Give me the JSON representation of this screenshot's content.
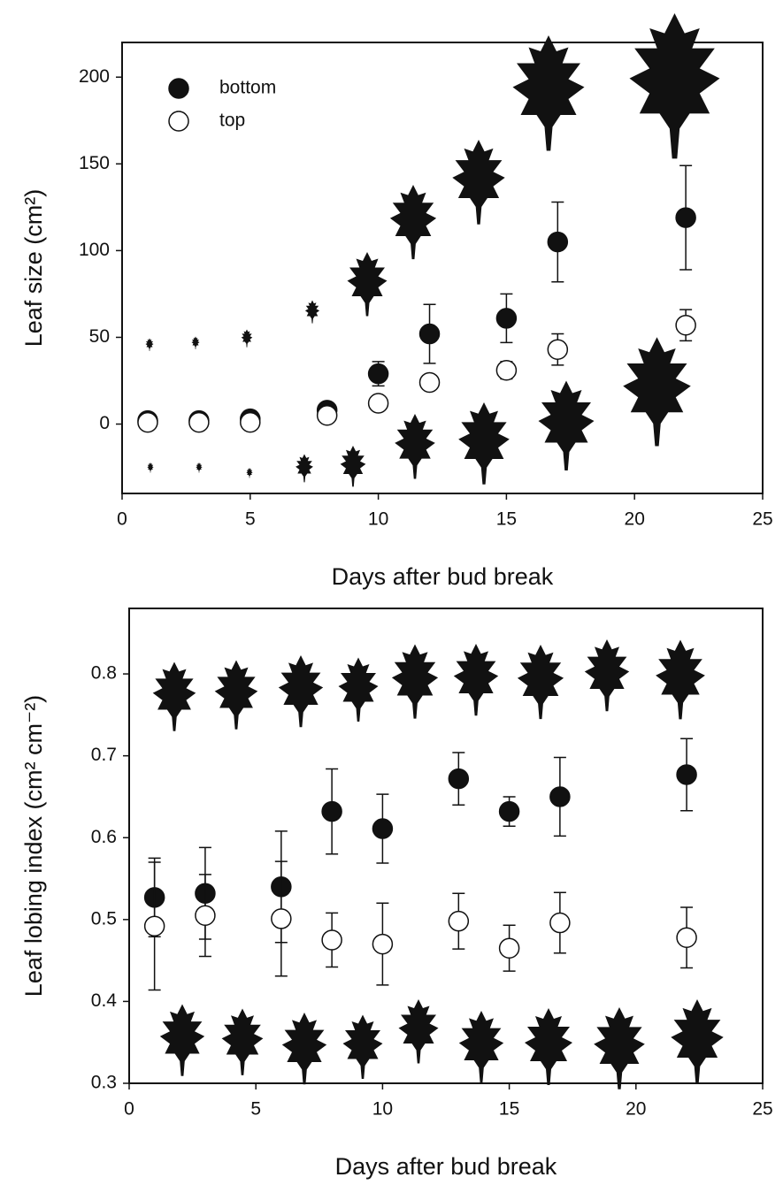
{
  "chart_data": [
    {
      "type": "scatter",
      "xlabel": "Days after bud break",
      "ylabel": "Leaf size (cm²)",
      "xlim": [
        0,
        25
      ],
      "xticks": [
        0,
        5,
        10,
        15,
        20,
        25
      ],
      "ylim": [
        -40,
        220
      ],
      "yticks": [
        0,
        50,
        100,
        150,
        200
      ],
      "legend": "upper left",
      "series": [
        {
          "name": "bottom",
          "color": "#111111",
          "fill": "#111111",
          "x": [
            1,
            3,
            5,
            8,
            10,
            12,
            15,
            17,
            22
          ],
          "values": [
            2,
            2,
            3,
            8,
            29,
            52,
            61,
            105,
            119
          ],
          "errors": [
            null,
            null,
            null,
            null,
            7,
            17,
            14,
            23,
            30
          ]
        },
        {
          "name": "top",
          "color": "#111111",
          "fill": "#ffffff",
          "x": [
            1,
            3,
            5,
            8,
            10,
            12,
            15,
            17,
            22
          ],
          "values": [
            1,
            1,
            1,
            5,
            12,
            24,
            31,
            43,
            57
          ],
          "errors": [
            null,
            null,
            null,
            null,
            null,
            null,
            5,
            9,
            9
          ]
        }
      ]
    },
    {
      "type": "scatter",
      "xlabel": "Days after bud break",
      "ylabel": "Leaf lobing index (cm² cm⁻²)",
      "xlim": [
        0,
        25
      ],
      "xticks": [
        0,
        5,
        10,
        15,
        20,
        25
      ],
      "ylim": [
        0.3,
        0.88
      ],
      "yticks": [
        0.3,
        0.4,
        0.5,
        0.6,
        0.7,
        0.8
      ],
      "series": [
        {
          "color": "#111111",
          "fill": "#111111",
          "x": [
            1,
            3,
            6,
            8,
            10,
            13,
            15,
            17,
            22
          ],
          "values": [
            0.527,
            0.532,
            0.54,
            0.632,
            0.611,
            0.672,
            0.632,
            0.65,
            0.677
          ],
          "errors": [
            0.048,
            0.056,
            0.068,
            0.052,
            0.042,
            0.032,
            0.018,
            0.048,
            0.044
          ]
        },
        {
          "color": "#111111",
          "fill": "#ffffff",
          "x": [
            1,
            3,
            6,
            8,
            10,
            13,
            15,
            17,
            22
          ],
          "values": [
            0.492,
            0.505,
            0.501,
            0.475,
            0.47,
            0.498,
            0.465,
            0.496,
            0.478
          ],
          "errors": [
            0.078,
            0.05,
            0.07,
            0.033,
            0.05,
            0.034,
            0.028,
            0.037,
            0.037
          ]
        }
      ]
    }
  ]
}
